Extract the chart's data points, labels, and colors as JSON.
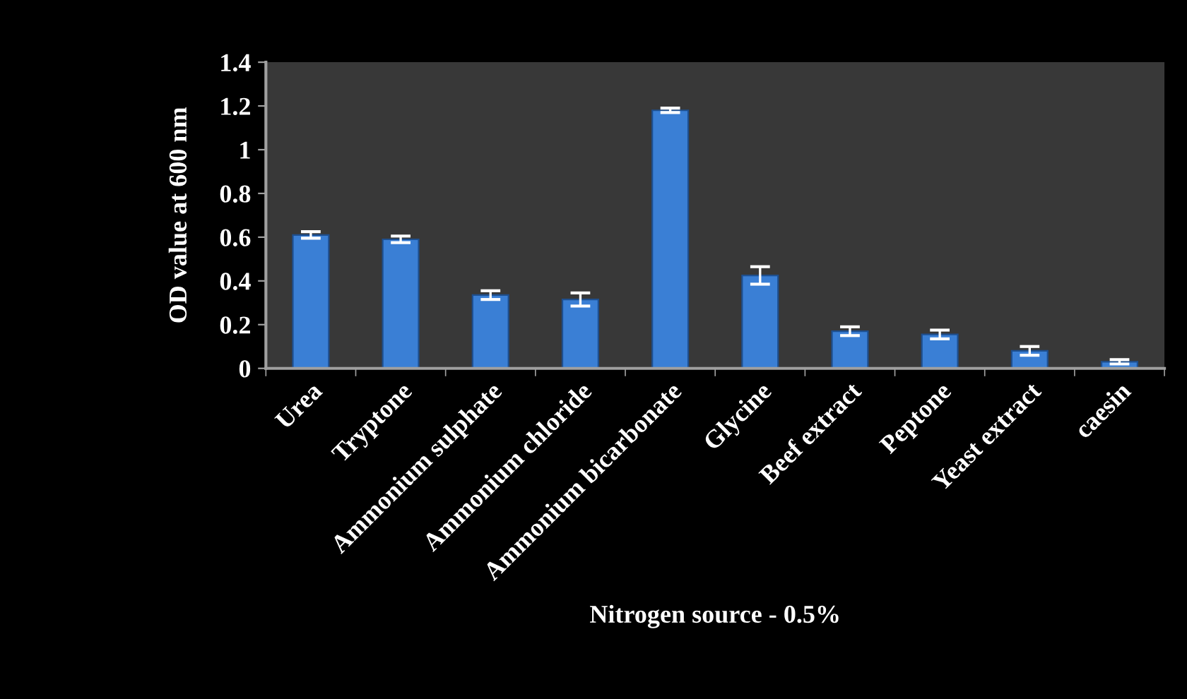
{
  "chart_data": {
    "type": "bar",
    "xlabel": "Nitrogen source - 0.5%",
    "ylabel": "OD value at 600 nm",
    "categories": [
      "Urea",
      "Tryptone",
      "Ammonium sulphate",
      "Ammonium chloride",
      "Ammonium bicarbonate",
      "Glycine",
      "Beef extract",
      "Peptone",
      "Yeast extract",
      "caesin"
    ],
    "values": [
      0.61,
      0.59,
      0.335,
      0.315,
      1.18,
      0.425,
      0.17,
      0.155,
      0.08,
      0.03
    ],
    "errors": [
      0.015,
      0.015,
      0.02,
      0.03,
      0.01,
      0.04,
      0.02,
      0.02,
      0.02,
      0.01
    ],
    "color": "#3a7fd5",
    "ylim": [
      0,
      1.4
    ],
    "yticks": [
      0,
      0.2,
      0.4,
      0.6,
      0.8,
      1,
      1.2,
      1.4
    ],
    "grid": false,
    "legend": false
  }
}
